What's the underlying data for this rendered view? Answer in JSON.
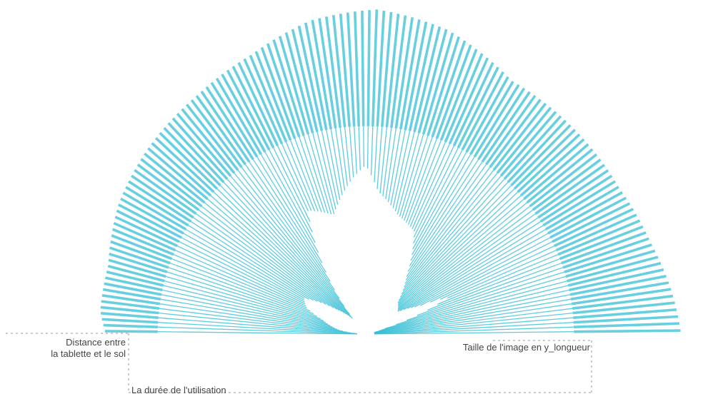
{
  "chart_data": {
    "type": "radial-bar",
    "title": "",
    "labels": {
      "left_top": "Distance entre",
      "left_bottom": "la tablette et le sol",
      "right": "Taille de l'image en y_longueur",
      "bottom": "La durée de l'utilisation"
    },
    "accent_color": "#36bfd6",
    "guide_color": "#999999",
    "grid": false,
    "legend": "none",
    "bar_count": 140,
    "outer_profile": {
      "angles_deg": [
        0,
        8,
        18,
        30,
        45,
        60,
        75,
        88,
        100,
        112,
        125,
        140,
        152,
        165,
        175,
        180
      ],
      "lengths": [
        0.97,
        0.95,
        0.92,
        0.9,
        0.9,
        0.9,
        0.97,
        1.0,
        0.98,
        0.93,
        0.9,
        0.88,
        0.86,
        0.82,
        0.82,
        0.8
      ]
    },
    "mid_profile": {
      "angles_deg": [
        0,
        180
      ],
      "lengths": [
        0.64,
        0.64
      ]
    },
    "inner_profile": {
      "angles_deg": [
        0,
        8,
        16,
        24,
        28,
        35,
        45,
        55,
        65,
        75,
        85,
        90,
        95,
        105,
        115,
        123,
        130,
        140,
        150,
        156,
        162,
        172,
        180
      ],
      "lengths": [
        0.0,
        0.0,
        0.06,
        0.28,
        0.18,
        0.12,
        0.14,
        0.22,
        0.35,
        0.38,
        0.44,
        0.52,
        0.48,
        0.38,
        0.42,
        0.22,
        0.06,
        0.12,
        0.22,
        0.2,
        0.14,
        0.08,
        0.0
      ]
    }
  }
}
